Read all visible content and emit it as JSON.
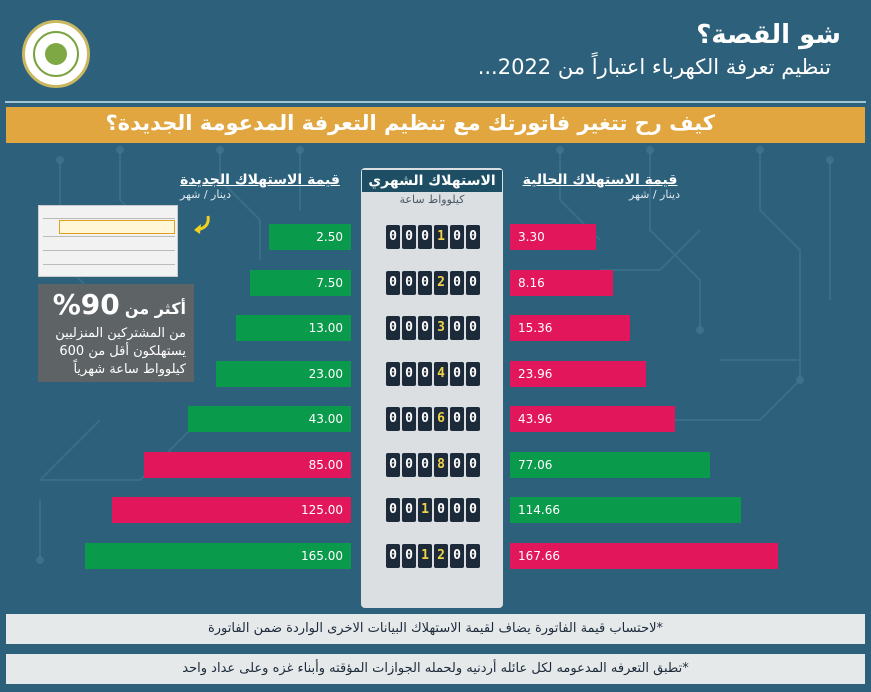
{
  "header": {
    "title": "شو القصة؟",
    "subtitle": "تنظيم تعرفة الكهرباء اعتباراً من 2022..."
  },
  "banner": {
    "text": "كيف رح تتغير فاتورتك مع تنظيم التعرفة المدعومة الجديدة؟"
  },
  "columns": {
    "new_title": "قيمة الاستهلاك الجديدة",
    "new_unit": "دينار / شهر",
    "center_title": "الاستهلاك الشهري",
    "center_unit": "كيلوواط ساعة",
    "current_title": "قيمة الاستهلاك الحالية",
    "current_unit": "دينار / شهر"
  },
  "stat": {
    "prefix": "أكثر من",
    "percent": "90%",
    "line1": "من المشتركين المنزليين",
    "line2": "يستهلكون أقل من 600",
    "line3": "كيلوواط ساعة شهرياً"
  },
  "notes": {
    "note1": "*لاحتساب قيمة الفاتورة يضاف لقيمة الاستهلاك البيانات الاخرى الواردة ضمن الفاتورة",
    "note2": "*تطبق التعرفه المدعومه لكل عائله أردنيه ولحمله الجوازات المؤقته وأبناء غزه وعلى عداد واحد"
  },
  "colors": {
    "cheaper": "#0a9a4b",
    "costlier": "#e2165a",
    "banner": "#e1a640"
  },
  "chart_data": {
    "type": "bar",
    "categories": [
      "000100",
      "000200",
      "000300",
      "000400",
      "000600",
      "000800",
      "001000",
      "001200"
    ],
    "highlight_digit_index": [
      3,
      3,
      3,
      3,
      3,
      3,
      2,
      2
    ],
    "new_labels": [
      "2.50",
      "7.50",
      "13.00",
      "23.00",
      "43.00",
      "85.00",
      "125.00",
      "165.00"
    ],
    "current_labels": [
      "3.30",
      "8.16",
      "15.36",
      "23.96",
      "43.96",
      "77.06",
      "114.66",
      "167.66"
    ],
    "series": [
      {
        "name": "قيمة الاستهلاك الجديدة",
        "values": [
          2.5,
          7.5,
          13.0,
          23.0,
          43.0,
          85.0,
          125.0,
          165.0
        ]
      },
      {
        "name": "قيمة الاستهلاك الحالية",
        "values": [
          3.3,
          8.16,
          15.36,
          23.96,
          43.96,
          77.06,
          114.66,
          167.66
        ]
      }
    ]
  }
}
